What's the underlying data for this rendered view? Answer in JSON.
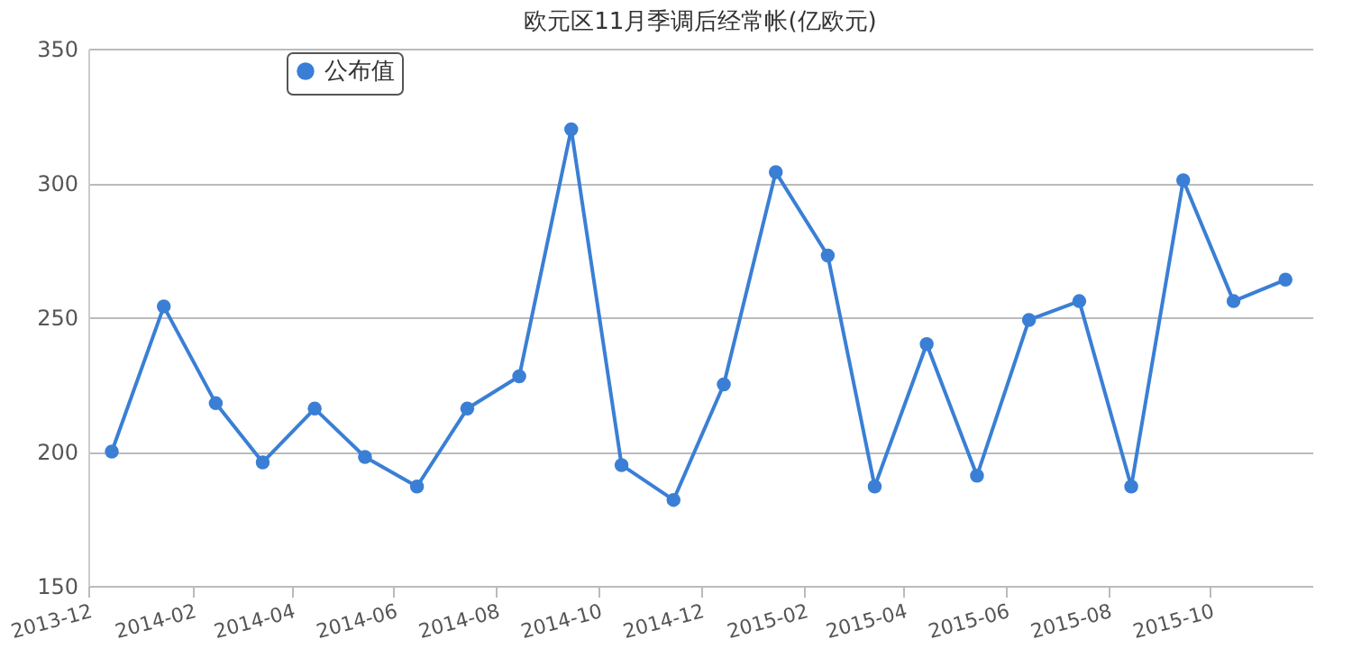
{
  "chart_data": {
    "type": "line",
    "title": "欧元区11月季调后经常帐(亿欧元)",
    "x": [
      "2013-12-15",
      "2014-01-15",
      "2014-02-15",
      "2014-03-15",
      "2014-04-15",
      "2014-05-15",
      "2014-06-15",
      "2014-07-15",
      "2014-08-15",
      "2014-09-15",
      "2014-10-15",
      "2014-11-15",
      "2014-12-15",
      "2015-01-15",
      "2015-02-15",
      "2015-03-15",
      "2015-04-15",
      "2015-05-15",
      "2015-06-15",
      "2015-07-15",
      "2015-08-15",
      "2015-09-15",
      "2015-10-15",
      "2015-11-15"
    ],
    "series": [
      {
        "name": "公布值",
        "color": "#3a7fd5",
        "values": [
          200,
          254,
          218,
          196,
          216,
          198,
          187,
          216,
          228,
          320,
          195,
          182,
          225,
          304,
          273,
          187,
          240,
          191,
          249,
          256,
          187,
          301,
          256,
          264
        ]
      }
    ],
    "xlim": [
      "2013-12-01",
      "2015-12-01"
    ],
    "xticks": [
      {
        "value": "2013-12-01",
        "label": "2013-12"
      },
      {
        "value": "2014-02-01",
        "label": "2014-02"
      },
      {
        "value": "2014-04-01",
        "label": "2014-04"
      },
      {
        "value": "2014-06-01",
        "label": "2014-06"
      },
      {
        "value": "2014-08-01",
        "label": "2014-08"
      },
      {
        "value": "2014-10-01",
        "label": "2014-10"
      },
      {
        "value": "2014-12-01",
        "label": "2014-12"
      },
      {
        "value": "2015-02-01",
        "label": "2015-02"
      },
      {
        "value": "2015-04-01",
        "label": "2015-04"
      },
      {
        "value": "2015-06-01",
        "label": "2015-06"
      },
      {
        "value": "2015-08-01",
        "label": "2015-08"
      },
      {
        "value": "2015-10-01",
        "label": "2015-10"
      }
    ],
    "ylim": [
      150,
      350
    ],
    "yticks": [
      150,
      200,
      250,
      300,
      350
    ],
    "grid": "y",
    "legend": "top left",
    "marker": "circle",
    "line_style": "solid"
  }
}
